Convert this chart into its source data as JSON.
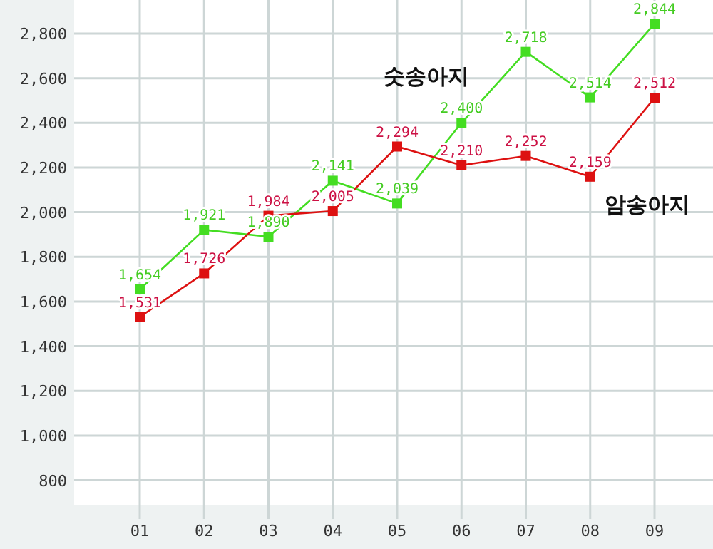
{
  "chart_data": {
    "type": "line",
    "categories": [
      "01",
      "02",
      "03",
      "04",
      "05",
      "06",
      "07",
      "08",
      "09"
    ],
    "series": [
      {
        "name": "숫송아지",
        "color": "#44dd22",
        "values": [
          1654,
          1921,
          1890,
          2141,
          2039,
          2400,
          2718,
          2514,
          2844
        ],
        "value_labels": [
          "1,654",
          "1,921",
          "1,890",
          "2,141",
          "2,039",
          "2,400",
          "2,718",
          "2,514",
          "2,844"
        ]
      },
      {
        "name": "암송아지",
        "color": "#dd1111",
        "values": [
          1531,
          1726,
          1984,
          2005,
          2294,
          2210,
          2252,
          2159,
          2512
        ],
        "value_labels": [
          "1,531",
          "1,726",
          "1,984",
          "2,005",
          "2,294",
          "2,210",
          "2,252",
          "2,159",
          "2,512"
        ]
      }
    ],
    "ylim": [
      690,
      2950
    ],
    "yticks": [
      {
        "value": 800,
        "label": "800"
      },
      {
        "value": 1000,
        "label": "1,000"
      },
      {
        "value": 1200,
        "label": "1,200"
      },
      {
        "value": 1400,
        "label": "1,400"
      },
      {
        "value": 1600,
        "label": "1,600"
      },
      {
        "value": 1800,
        "label": "1,800"
      },
      {
        "value": 2000,
        "label": "2,000"
      },
      {
        "value": 2200,
        "label": "2,200"
      },
      {
        "value": 2400,
        "label": "2,400"
      },
      {
        "value": 2600,
        "label": "2,600"
      },
      {
        "value": 2800,
        "label": "2,800"
      }
    ],
    "grid": true,
    "marker": "square",
    "line_style": "solid"
  }
}
